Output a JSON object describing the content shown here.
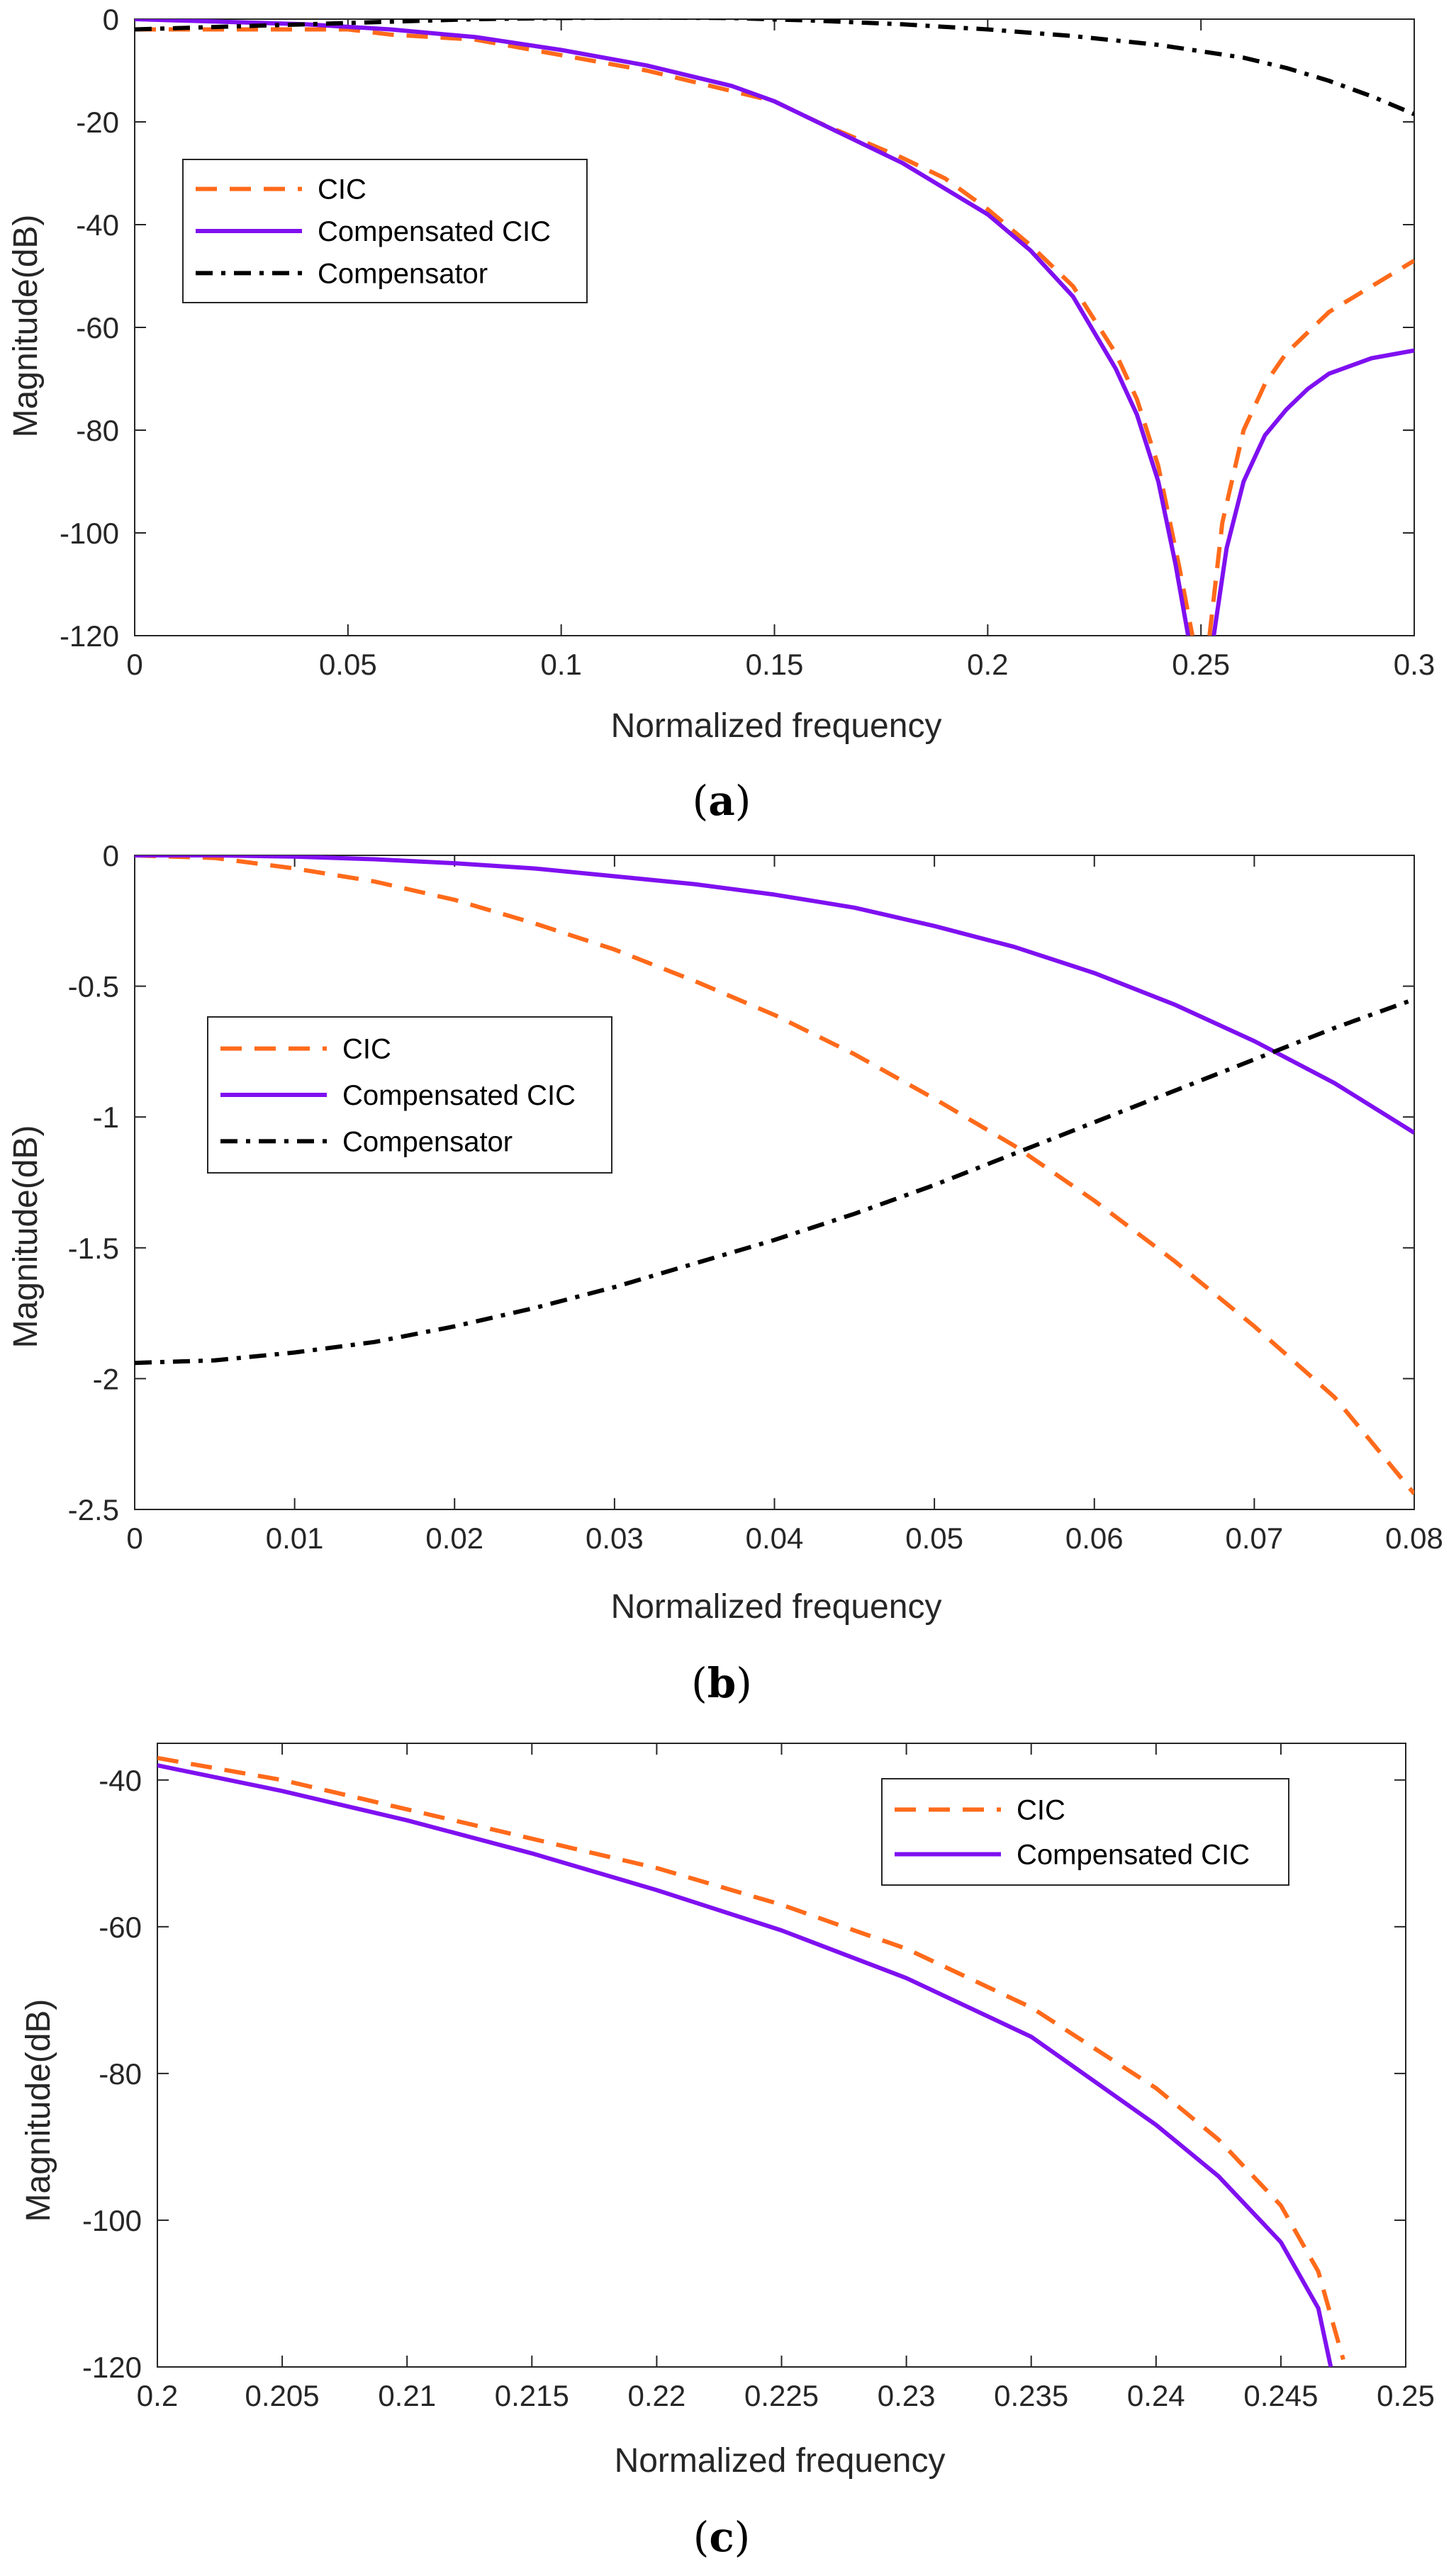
{
  "colors": {
    "cic": "#FF6A1A",
    "compensated": "#7F10F0",
    "compensator": "#000000",
    "axis": "#262626"
  },
  "chart_data": [
    {
      "panel": "a",
      "type": "line",
      "caption_letter": "a",
      "xlabel": "Normalized frequency",
      "ylabel": "Magnitude(dB)",
      "xlim": [
        0,
        0.3
      ],
      "ylim": [
        -120,
        0
      ],
      "xticks": [
        0,
        0.05,
        0.1,
        0.15,
        0.2,
        0.25,
        0.3
      ],
      "xtick_labels": [
        "0",
        "0.05",
        "0.1",
        "0.15",
        "0.2",
        "0.25",
        "0.3"
      ],
      "yticks": [
        0,
        -20,
        -40,
        -60,
        -80,
        -100,
        -120
      ],
      "ytick_labels": [
        "0",
        "-20",
        "-40",
        "-60",
        "-80",
        "-100",
        "-120"
      ],
      "legend": [
        "CIC",
        "Compensated CIC",
        "Compensator"
      ],
      "legend_position": "upper-left",
      "series": [
        {
          "name": "CIC",
          "style": "dashed",
          "color_key": "cic",
          "x": [
            0,
            0.02,
            0.04,
            0.05,
            0.06,
            0.08,
            0.1,
            0.12,
            0.14,
            0.15,
            0.16,
            0.18,
            0.19,
            0.2,
            0.21,
            0.22,
            0.23,
            0.235,
            0.24,
            0.245,
            0.248
          ],
          "y": [
            -2,
            -2,
            -2,
            -2,
            -3,
            -4,
            -7,
            -10,
            -14,
            -16,
            -20,
            -27,
            -31,
            -37,
            -44,
            -52,
            -65,
            -74,
            -87,
            -107,
            -120
          ]
        },
        {
          "name": "CIC",
          "style": "dashed",
          "color_key": "cic",
          "x": [
            0.252,
            0.255,
            0.26,
            0.265,
            0.27,
            0.28,
            0.29,
            0.3
          ],
          "y": [
            -120,
            -98,
            -80,
            -71,
            -65,
            -57,
            -52,
            -47
          ]
        },
        {
          "name": "Compensated CIC",
          "style": "solid",
          "color_key": "compensated",
          "x": [
            0,
            0.02,
            0.04,
            0.05,
            0.06,
            0.08,
            0.1,
            0.12,
            0.14,
            0.15,
            0.16,
            0.18,
            0.19,
            0.2,
            0.21,
            0.22,
            0.23,
            0.235,
            0.24,
            0.244,
            0.247
          ],
          "y": [
            0,
            -0.5,
            -1,
            -1.5,
            -2,
            -3.5,
            -6,
            -9,
            -13,
            -16,
            -20,
            -28,
            -33,
            -38,
            -45,
            -54,
            -68,
            -77,
            -90,
            -106,
            -120
          ]
        },
        {
          "name": "Compensated CIC",
          "style": "solid",
          "color_key": "compensated",
          "x": [
            0.253,
            0.256,
            0.26,
            0.265,
            0.27,
            0.275,
            0.28,
            0.29,
            0.3
          ],
          "y": [
            -120,
            -103,
            -90,
            -81,
            -76,
            -72,
            -69,
            -66,
            -64.5
          ]
        },
        {
          "name": "Compensator",
          "style": "dashdot",
          "color_key": "compensator",
          "x": [
            0,
            0.02,
            0.04,
            0.06,
            0.08,
            0.1,
            0.12,
            0.14,
            0.16,
            0.18,
            0.2,
            0.22,
            0.24,
            0.26,
            0.27,
            0.28,
            0.29,
            0.3
          ],
          "y": [
            -2,
            -1.5,
            -1,
            -0.5,
            0,
            0.2,
            0.3,
            0.2,
            -0.3,
            -1,
            -2,
            -3.3,
            -5,
            -7.5,
            -9.5,
            -12,
            -15,
            -18.5
          ]
        }
      ]
    },
    {
      "panel": "b",
      "type": "line",
      "caption_letter": "b",
      "xlabel": "Normalized frequency",
      "ylabel": "Magnitude(dB)",
      "xlim": [
        0,
        0.08
      ],
      "ylim": [
        -2.5,
        0
      ],
      "xticks": [
        0,
        0.01,
        0.02,
        0.03,
        0.04,
        0.05,
        0.06,
        0.07,
        0.08
      ],
      "xtick_labels": [
        "0",
        "0.01",
        "0.02",
        "0.03",
        "0.04",
        "0.05",
        "0.06",
        "0.07",
        "0.08"
      ],
      "yticks": [
        0,
        -0.5,
        -1,
        -1.5,
        -2,
        -2.5
      ],
      "ytick_labels": [
        "0",
        "-0.5",
        "-1",
        "-1.5",
        "-2",
        "-2.5"
      ],
      "legend": [
        "CIC",
        "Compensated CIC",
        "Compensator"
      ],
      "legend_position": "middle-left",
      "series": [
        {
          "name": "CIC",
          "style": "dashed",
          "color_key": "cic",
          "x": [
            0,
            0.005,
            0.01,
            0.015,
            0.02,
            0.025,
            0.03,
            0.035,
            0.04,
            0.045,
            0.05,
            0.055,
            0.06,
            0.065,
            0.07,
            0.075,
            0.08
          ],
          "y": [
            0,
            -0.01,
            -0.05,
            -0.1,
            -0.17,
            -0.26,
            -0.36,
            -0.48,
            -0.61,
            -0.76,
            -0.93,
            -1.11,
            -1.32,
            -1.55,
            -1.8,
            -2.07,
            -2.44
          ]
        },
        {
          "name": "Compensated CIC",
          "style": "solid",
          "color_key": "compensated",
          "x": [
            0,
            0.005,
            0.01,
            0.015,
            0.02,
            0.025,
            0.03,
            0.035,
            0.04,
            0.045,
            0.05,
            0.055,
            0.06,
            0.065,
            0.07,
            0.075,
            0.08
          ],
          "y": [
            0,
            0,
            -0.005,
            -0.015,
            -0.03,
            -0.05,
            -0.08,
            -0.11,
            -0.15,
            -0.2,
            -0.27,
            -0.35,
            -0.45,
            -0.57,
            -0.71,
            -0.87,
            -1.06
          ]
        },
        {
          "name": "Compensator",
          "style": "dashdot",
          "color_key": "compensator",
          "x": [
            0,
            0.005,
            0.01,
            0.015,
            0.02,
            0.025,
            0.03,
            0.035,
            0.04,
            0.045,
            0.05,
            0.055,
            0.06,
            0.065,
            0.07,
            0.075,
            0.08
          ],
          "y": [
            -1.94,
            -1.93,
            -1.9,
            -1.86,
            -1.8,
            -1.73,
            -1.65,
            -1.56,
            -1.47,
            -1.37,
            -1.26,
            -1.14,
            -1.02,
            -0.9,
            -0.78,
            -0.66,
            -0.55
          ]
        }
      ]
    },
    {
      "panel": "c",
      "type": "line",
      "caption_letter": "c",
      "xlabel": "Normalized frequency",
      "ylabel": "Magnitude(dB)",
      "xlim": [
        0.2,
        0.25
      ],
      "ylim": [
        -120,
        -35
      ],
      "xticks": [
        0.2,
        0.205,
        0.21,
        0.215,
        0.22,
        0.225,
        0.23,
        0.235,
        0.24,
        0.245,
        0.25
      ],
      "xtick_labels": [
        "0.2",
        "0.205",
        "0.21",
        "0.215",
        "0.22",
        "0.225",
        "0.23",
        "0.235",
        "0.24",
        "0.245",
        "0.25"
      ],
      "yticks": [
        -40,
        -60,
        -80,
        -100,
        -120
      ],
      "ytick_labels": [
        "-40",
        "-60",
        "-80",
        "-100",
        "-120"
      ],
      "legend": [
        "CIC",
        "Compensated CIC"
      ],
      "legend_position": "upper-right",
      "series": [
        {
          "name": "CIC",
          "style": "dashed",
          "color_key": "cic",
          "x": [
            0.2,
            0.205,
            0.21,
            0.215,
            0.22,
            0.225,
            0.23,
            0.235,
            0.24,
            0.2425,
            0.245,
            0.2465,
            0.2475
          ],
          "y": [
            -37,
            -40,
            -44,
            -48,
            -52,
            -57,
            -63,
            -71,
            -82,
            -89,
            -98,
            -107,
            -119
          ]
        },
        {
          "name": "Compensated CIC",
          "style": "solid",
          "color_key": "compensated",
          "x": [
            0.2,
            0.205,
            0.21,
            0.215,
            0.22,
            0.225,
            0.23,
            0.235,
            0.24,
            0.2425,
            0.245,
            0.2465,
            0.247
          ],
          "y": [
            -38,
            -41.5,
            -45.5,
            -50,
            -55,
            -60.5,
            -67,
            -75,
            -87,
            -94,
            -103,
            -112,
            -120
          ]
        }
      ]
    }
  ]
}
